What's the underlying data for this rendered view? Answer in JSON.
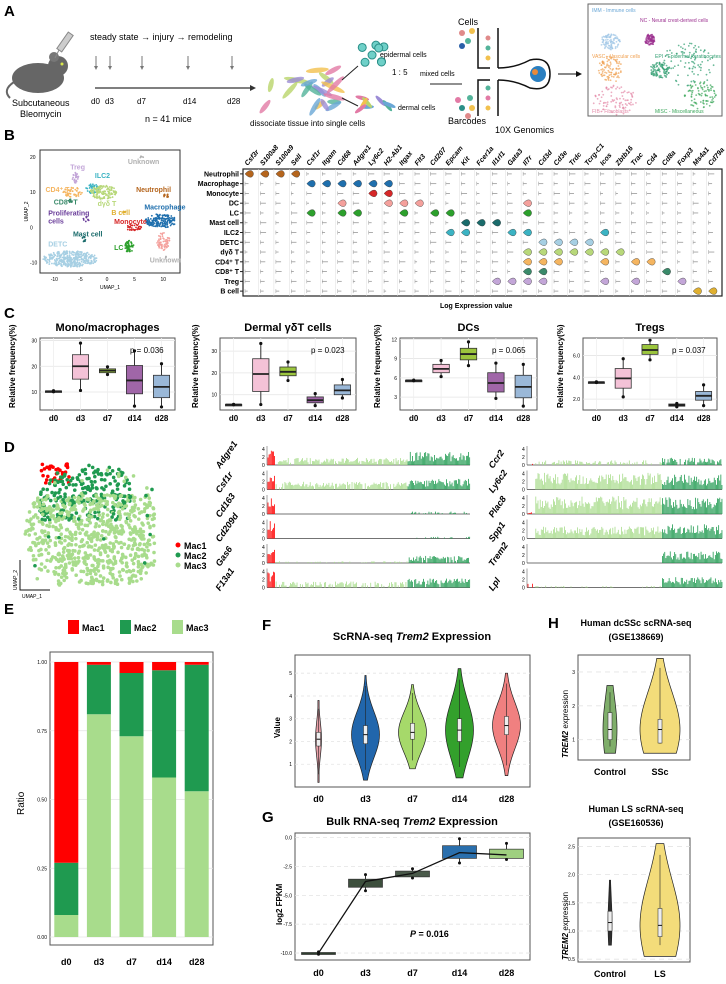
{
  "panel_labels": {
    "A": "A",
    "B": "B",
    "C": "C",
    "D": "D",
    "E": "E",
    "F": "F",
    "G": "G",
    "H": "H"
  },
  "panelA": {
    "timeline_title": "steady state → injury → remodeling",
    "timepoints": [
      "d0",
      "d3",
      "d7",
      "d14",
      "d28"
    ],
    "n_label": "n = 41 mice",
    "mouse_label_1": "Subcutaneous",
    "mouse_label_2": "Bleomycin",
    "dissociate_label": "dissociate tissue into single cells",
    "epidermal_label": "epidermal cells",
    "ratio_label": "1 : 5",
    "dermal_label": "dermal cells",
    "mixed_label": "mixed cells",
    "cells_label": "Cells",
    "barcodes_label": "Barcodes",
    "platform_label": "10X Genomics",
    "umap_labels": [
      {
        "text": "IMM - Immune cells",
        "color": "#6aa7d6"
      },
      {
        "text": "NC - Neural crest-derived cells",
        "color": "#9b2f8f"
      },
      {
        "text": "EPI - Epidermal keratinocytes",
        "color": "#2e9d6f"
      },
      {
        "text": "VASC - Vascular cells",
        "color": "#f0a050"
      },
      {
        "text": "FIB - Fibroblasts",
        "color": "#e48aa8"
      },
      {
        "text": "MISC - Miscellaneous",
        "color": "#3aa65a"
      }
    ]
  },
  "panelB": {
    "umap": {
      "xlabel": "UMAP_1",
      "ylabel": "UMAP_2",
      "xticks": [
        "-10",
        "-5",
        "0",
        "5",
        "10"
      ],
      "yticks": [
        "20",
        "10",
        "0",
        "-10"
      ],
      "clusters": [
        {
          "label": "Unknown",
          "color": "#b0b0b0"
        },
        {
          "label": "Treg",
          "color": "#c3a6d8"
        },
        {
          "label": "ILC2",
          "color": "#3bb3c3"
        },
        {
          "label": "CD4⁺ T",
          "color": "#f5b560"
        },
        {
          "label": "Neutrophil",
          "color": "#b5651d"
        },
        {
          "label": "CD8⁺ T",
          "color": "#3a8a6a"
        },
        {
          "label": "dγδ T",
          "color": "#b8d87a"
        },
        {
          "label": "Proliferating cells",
          "color": "#6a3d9a"
        },
        {
          "label": "B cell",
          "color": "#e0b030"
        },
        {
          "label": "Macrophage",
          "color": "#1f6fad"
        },
        {
          "label": "Monocyte",
          "color": "#d62728"
        },
        {
          "label": "Mast cell",
          "color": "#1a6b6b"
        },
        {
          "label": "LC",
          "color": "#2ca02c"
        },
        {
          "label": "DETC",
          "color": "#a6cfe3"
        },
        {
          "label": "DC",
          "color": "#f4a09c"
        },
        {
          "label": "Unknown",
          "color": "#b0b0b0"
        }
      ]
    },
    "dotplot": {
      "xlabel": "Log Expression value",
      "genes": [
        "Csf3r",
        "S100a8",
        "S100a9",
        "Sell",
        "Csf1r",
        "Itgam",
        "Cd68",
        "Adgre1",
        "Ly6c2",
        "H2-Ab1",
        "Itgax",
        "Flt3",
        "Cd207",
        "Epcam",
        "Kit",
        "Fcer1a",
        "Il1rl1",
        "Gata3",
        "Il7r",
        "Cd3d",
        "Cd3e",
        "Trdc",
        "Tcrg-C1",
        "Icos",
        "Zbtb16",
        "Trac",
        "Cd4",
        "Cd8a",
        "Foxp3",
        "Ms4a1",
        "Cd79a"
      ],
      "rows": [
        {
          "label": "Neutrophil",
          "color": "#b5651d",
          "expressed": [
            0,
            1,
            2,
            3
          ]
        },
        {
          "label": "Macrophage",
          "color": "#1f6fad",
          "expressed": [
            4,
            5,
            6,
            7,
            8,
            9
          ]
        },
        {
          "label": "Monocyte",
          "color": "#d62728",
          "expressed": [
            8,
            9
          ]
        },
        {
          "label": "DC",
          "color": "#f4a09c",
          "expressed": [
            6,
            9,
            10,
            11,
            18
          ]
        },
        {
          "label": "LC",
          "color": "#2ca02c",
          "expressed": [
            4,
            6,
            7,
            10,
            12,
            13,
            18
          ]
        },
        {
          "label": "Mast cell",
          "color": "#1a6b6b",
          "expressed": [
            14,
            15,
            16
          ]
        },
        {
          "label": "ILC2",
          "color": "#3bb3c3",
          "expressed": [
            13,
            14,
            17,
            18,
            23
          ]
        },
        {
          "label": "DETC",
          "color": "#a6cfe3",
          "expressed": [
            19,
            20,
            21,
            22
          ]
        },
        {
          "label": "dγδ T",
          "color": "#b8d87a",
          "expressed": [
            18,
            19,
            20,
            21,
            22,
            23,
            24
          ]
        },
        {
          "label": "CD4⁺ T",
          "color": "#f5b560",
          "expressed": [
            18,
            19,
            20,
            23,
            25,
            26
          ]
        },
        {
          "label": "CD8⁺ T",
          "color": "#3a8a6a",
          "expressed": [
            18,
            19,
            27
          ]
        },
        {
          "label": "Treg",
          "color": "#c3a6d8",
          "expressed": [
            16,
            17,
            18,
            19,
            23,
            25,
            28
          ]
        },
        {
          "label": "B cell",
          "color": "#e0b030",
          "expressed": [
            29,
            30
          ]
        }
      ]
    }
  },
  "panelD": {
    "legend": [
      {
        "label": "Mac1",
        "color": "#ff0000"
      },
      {
        "label": "Mac2",
        "color": "#1f9a50"
      },
      {
        "label": "Mac3",
        "color": "#a8dc8c"
      }
    ],
    "umap_xlabel": "UMAP_1",
    "umap_ylabel": "UMAP_2",
    "track_yticks": [
      "0",
      "2",
      "4"
    ],
    "tracks_left": [
      {
        "gene": "Adgre1",
        "levels": {
          "Mac1": 2.5,
          "Mac3": 1.2,
          "Mac2": 2.2
        }
      },
      {
        "gene": "Csf1r",
        "levels": {
          "Mac1": 2.5,
          "Mac3": 1.3,
          "Mac2": 1.8
        }
      },
      {
        "gene": "Cd163",
        "levels": {
          "Mac1": 2.8,
          "Mac3": 0.05,
          "Mac2": 0.4
        }
      },
      {
        "gene": "Cd209d",
        "levels": {
          "Mac1": 3.0,
          "Mac3": 0.02,
          "Mac2": 0.3
        }
      },
      {
        "gene": "Gas6",
        "levels": {
          "Mac1": 2.5,
          "Mac3": 0.3,
          "Mac2": 1.2
        }
      },
      {
        "gene": "F13a1",
        "levels": {
          "Mac1": 3.0,
          "Mac3": 1.0,
          "Mac2": 1.5
        }
      }
    ],
    "tracks_right": [
      {
        "gene": "Ccr2",
        "levels": {
          "Mac1": 0.3,
          "Mac3": 0.8,
          "Mac2": 1.2
        }
      },
      {
        "gene": "Ly6c2",
        "levels": {
          "Mac1": 0.2,
          "Mac3": 2.8,
          "Mac2": 2.5
        }
      },
      {
        "gene": "Plac8",
        "levels": {
          "Mac1": 0.3,
          "Mac3": 3.0,
          "Mac2": 2.8
        }
      },
      {
        "gene": "Spp1",
        "levels": {
          "Mac1": 0.1,
          "Mac3": 2.0,
          "Mac2": 2.4
        }
      },
      {
        "gene": "Trem2",
        "levels": {
          "Mac1": 0.05,
          "Mac3": 0.05,
          "Mac2": 2.0
        }
      },
      {
        "gene": "Lpl",
        "levels": {
          "Mac1": 0.8,
          "Mac3": 0.3,
          "Mac2": 1.8
        }
      }
    ]
  },
  "chart_data": [
    {
      "type": "box",
      "panel": "C",
      "title": "Mono/macrophages",
      "ylabel": "Relative frequency(%)",
      "categories": [
        "d0",
        "d3",
        "d7",
        "d14",
        "d28"
      ],
      "ylim": [
        3,
        31
      ],
      "yticks": [
        "10",
        "20",
        "30"
      ],
      "annotation": "p = 0.036",
      "grid": true,
      "colors": [
        "#333333",
        "#f4c2d7",
        "#9bc53d",
        "#a066a8",
        "#9ab8d8"
      ],
      "boxes": [
        {
          "min": 10.1,
          "q1": 10.2,
          "median": 10.3,
          "q3": 10.4,
          "max": 10.5
        },
        {
          "min": 10.6,
          "q1": 15,
          "median": 20,
          "q3": 24.5,
          "max": 29
        },
        {
          "min": 16.8,
          "q1": 17.5,
          "median": 18.3,
          "q3": 19,
          "max": 19.8
        },
        {
          "min": 4.5,
          "q1": 9.3,
          "median": 14.5,
          "q3": 20.3,
          "max": 26
        },
        {
          "min": 4.2,
          "q1": 7.8,
          "median": 12,
          "q3": 16.5,
          "max": 21
        }
      ]
    },
    {
      "type": "box",
      "panel": "C",
      "title": "Dermal γδT cells",
      "ylabel": "Relative frequency(%)",
      "categories": [
        "d0",
        "d3",
        "d7",
        "d14",
        "d28"
      ],
      "ylim": [
        3,
        36
      ],
      "yticks": [
        "10",
        "20",
        "30"
      ],
      "annotation": "p = 0.023",
      "grid": true,
      "colors": [
        "#333333",
        "#f4c2d7",
        "#9bc53d",
        "#a066a8",
        "#9ab8d8"
      ],
      "boxes": [
        {
          "min": 5.4,
          "q1": 5.45,
          "median": 5.5,
          "q3": 5.55,
          "max": 5.6
        },
        {
          "min": 5.5,
          "q1": 11.5,
          "median": 19.5,
          "q3": 26.5,
          "max": 33.5
        },
        {
          "min": 16.5,
          "q1": 18.7,
          "median": 20.5,
          "q3": 22.7,
          "max": 25
        },
        {
          "min": 5,
          "q1": 6.3,
          "median": 7.5,
          "q3": 9,
          "max": 10.5
        },
        {
          "min": 8.5,
          "q1": 10,
          "median": 12,
          "q3": 14.5,
          "max": 17
        }
      ]
    },
    {
      "type": "box",
      "panel": "C",
      "title": "DCs",
      "ylabel": "Relative frequency(%)",
      "categories": [
        "d0",
        "d3",
        "d7",
        "d14",
        "d28"
      ],
      "ylim": [
        1,
        12.2
      ],
      "yticks": [
        "3",
        "6",
        "9",
        "12"
      ],
      "annotation": "p = 0.065",
      "grid": true,
      "colors": [
        "#333333",
        "#f4c2d7",
        "#9bc53d",
        "#a066a8",
        "#9ab8d8"
      ],
      "boxes": [
        {
          "min": 5.55,
          "q1": 5.58,
          "median": 5.6,
          "q3": 5.62,
          "max": 5.65
        },
        {
          "min": 6.2,
          "q1": 6.8,
          "median": 7.4,
          "q3": 8.1,
          "max": 8.7
        },
        {
          "min": 7.9,
          "q1": 8.8,
          "median": 9.7,
          "q3": 10.6,
          "max": 11.6
        },
        {
          "min": 2.8,
          "q1": 3.8,
          "median": 5.2,
          "q3": 6.8,
          "max": 8.3
        },
        {
          "min": 1.6,
          "q1": 2.9,
          "median": 4.6,
          "q3": 6.4,
          "max": 8.1
        }
      ]
    },
    {
      "type": "box",
      "panel": "C",
      "title": "Tregs",
      "ylabel": "Relative frequency(%)",
      "categories": [
        "d0",
        "d3",
        "d7",
        "d14",
        "d28"
      ],
      "ylim": [
        1.0,
        7.6
      ],
      "yticks": [
        "2.0",
        "4.0",
        "6.0"
      ],
      "annotation": "p = 0.037",
      "grid": true,
      "colors": [
        "#333333",
        "#f4c2d7",
        "#9bc53d",
        "#333333",
        "#9ab8d8"
      ],
      "boxes": [
        {
          "min": 3.52,
          "q1": 3.53,
          "median": 3.55,
          "q3": 3.57,
          "max": 3.58
        },
        {
          "min": 2.2,
          "q1": 3.0,
          "median": 3.9,
          "q3": 4.8,
          "max": 5.7
        },
        {
          "min": 5.6,
          "q1": 6.1,
          "median": 6.5,
          "q3": 7.0,
          "max": 7.4
        },
        {
          "min": 1.3,
          "q1": 1.35,
          "median": 1.45,
          "q3": 1.55,
          "max": 1.6
        },
        {
          "min": 1.4,
          "q1": 1.9,
          "median": 2.3,
          "q3": 2.7,
          "max": 3.3
        }
      ]
    },
    {
      "type": "bar",
      "stacked": true,
      "panel": "E",
      "ylabel": "Ratio",
      "categories": [
        "d0",
        "d3",
        "d7",
        "d14",
        "d28"
      ],
      "ylim": [
        0,
        1
      ],
      "yticks": [
        "0.00",
        "0.25",
        "0.50",
        "0.75",
        "1.00"
      ],
      "legend": "top",
      "grid": true,
      "series": [
        {
          "name": "Mac1",
          "color": "#ff0000",
          "values": [
            0.73,
            0.01,
            0.04,
            0.03,
            0.01
          ]
        },
        {
          "name": "Mac2",
          "color": "#1f9a50",
          "values": [
            0.19,
            0.18,
            0.23,
            0.39,
            0.46
          ]
        },
        {
          "name": "Mac3",
          "color": "#a8dc8c",
          "values": [
            0.08,
            0.81,
            0.73,
            0.58,
            0.53
          ]
        }
      ]
    },
    {
      "type": "violin",
      "panel": "F",
      "title_pre": "ScRNA-seq ",
      "title_gene": "Trem2",
      "title_post": " Expression",
      "ylabel": "Value",
      "categories": [
        "d0",
        "d3",
        "d7",
        "d14",
        "d28"
      ],
      "ylim": [
        0,
        5.8
      ],
      "yticks": [
        "1",
        "2",
        "3",
        "4",
        "5"
      ],
      "grid": true,
      "colors": [
        "#e8a0a8",
        "#2166ac",
        "#a6d96a",
        "#33a02c",
        "#f08080"
      ],
      "violins": [
        {
          "min": 0.2,
          "q1": 1.8,
          "median": 2.1,
          "q3": 2.4,
          "max": 3.8
        },
        {
          "min": 0.3,
          "q1": 1.9,
          "median": 2.3,
          "q3": 2.7,
          "max": 4.9
        },
        {
          "min": 0.8,
          "q1": 2.1,
          "median": 2.4,
          "q3": 2.8,
          "max": 4.5
        },
        {
          "min": 0.4,
          "q1": 2.0,
          "median": 2.5,
          "q3": 3.0,
          "max": 5.2
        },
        {
          "min": 0.5,
          "q1": 2.3,
          "median": 2.7,
          "q3": 3.1,
          "max": 5.0
        }
      ]
    },
    {
      "type": "box",
      "panel": "G",
      "title_pre": "Bulk RNA-seq ",
      "title_gene": "Trem2",
      "title_post": " Expression",
      "ylabel": "log2 FPKM",
      "categories": [
        "d0",
        "d3",
        "d7",
        "d14",
        "d28"
      ],
      "ylim": [
        -10.6,
        0.4
      ],
      "yticks": [
        "0.0",
        "-2.5",
        "-5.0",
        "-7.5",
        "-10.0"
      ],
      "annotation_pre": "P",
      "annotation_post": " = 0.016",
      "grid": true,
      "trend_line": true,
      "colors": [
        "#2f3f2f",
        "#3d4f3d",
        "#4a5a4a",
        "#2a6fad",
        "#9fd080"
      ],
      "boxes": [
        {
          "min": -10.1,
          "q1": -10.05,
          "median": -10.0,
          "q3": -9.95,
          "max": -9.9
        },
        {
          "min": -4.6,
          "q1": -4.3,
          "median": -3.8,
          "q3": -3.6,
          "max": -3.2
        },
        {
          "min": -3.5,
          "q1": -3.4,
          "median": -3.1,
          "q3": -2.9,
          "max": -2.7
        },
        {
          "min": -2.2,
          "q1": -1.8,
          "median": -1.3,
          "q3": -0.7,
          "max": -0.1
        },
        {
          "min": -1.9,
          "q1": -1.8,
          "median": -1.5,
          "q3": -1.0,
          "max": -0.5
        }
      ]
    },
    {
      "type": "violin",
      "panel": "H",
      "title": "Human dcSSc scRNA-seq",
      "subtitle": "(GSE138669)",
      "ylabel_gene": "TREM2",
      "ylabel_post": " expression",
      "categories": [
        "Control",
        "SSc"
      ],
      "ylim": [
        0.4,
        3.5
      ],
      "yticks": [
        "1",
        "2",
        "3"
      ],
      "grid": true,
      "colors": [
        "#7fae6a",
        "#f3dc7a"
      ],
      "violins": [
        {
          "min": 0.6,
          "q1": 1.0,
          "median": 1.3,
          "q3": 1.8,
          "max": 2.6
        },
        {
          "min": 0.6,
          "q1": 0.9,
          "median": 1.3,
          "q3": 1.6,
          "max": 3.4
        }
      ]
    },
    {
      "type": "violin",
      "panel": "H",
      "title": "Human LS scRNA-seq",
      "subtitle": "(GSE160536)",
      "ylabel_gene": "TREM2",
      "ylabel_post": " expression",
      "categories": [
        "Control",
        "LS"
      ],
      "ylim": [
        0.45,
        2.65
      ],
      "yticks": [
        "0.5",
        "1.0",
        "1.5",
        "2.0",
        "2.5"
      ],
      "grid": true,
      "colors": [
        "#333333",
        "#f3dc7a"
      ],
      "violins": [
        {
          "min": 0.75,
          "q1": 1.0,
          "median": 1.15,
          "q3": 1.35,
          "max": 1.9
        },
        {
          "min": 0.55,
          "q1": 0.9,
          "median": 1.1,
          "q3": 1.4,
          "max": 2.55
        }
      ]
    }
  ]
}
